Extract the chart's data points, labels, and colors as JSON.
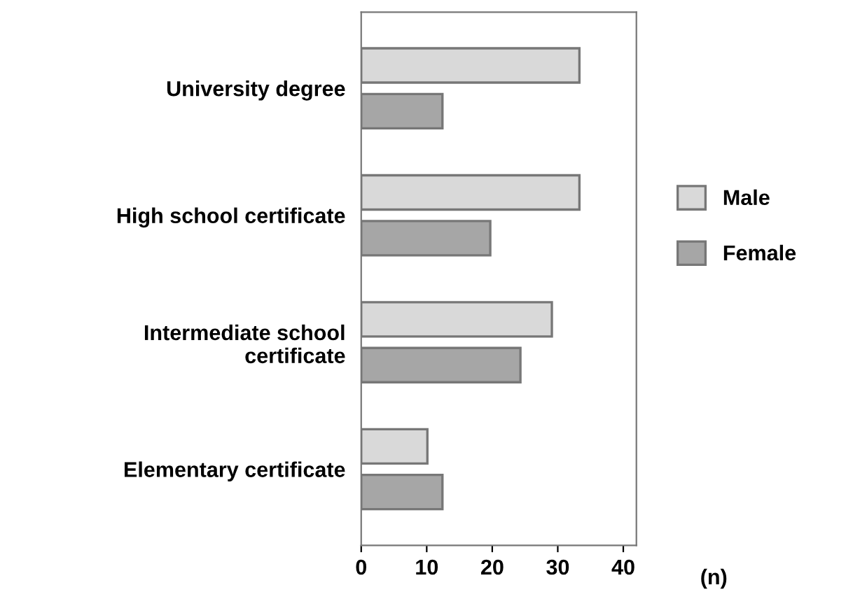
{
  "chart_data": {
    "type": "bar",
    "orientation": "horizontal",
    "xlabel": "(n)",
    "categories": [
      "University degree",
      "High school certificate",
      "Intermediate school\ncertificate",
      "Elementary certificate"
    ],
    "series": [
      {
        "name": "Male",
        "color": "#d9d9d9",
        "values": [
          33.3,
          33.3,
          29.1,
          10.1
        ]
      },
      {
        "name": "Female",
        "color": "#a6a6a6",
        "values": [
          12.4,
          19.7,
          24.3,
          12.4
        ]
      }
    ],
    "xlim": [
      0,
      42
    ],
    "xticks": [
      0,
      10,
      20,
      30,
      40
    ],
    "grid": false,
    "legend": "right"
  }
}
